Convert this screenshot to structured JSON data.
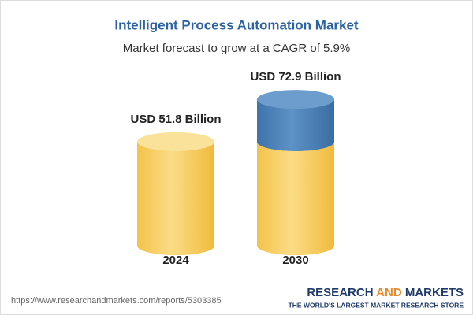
{
  "chart_data": {
    "type": "cylinder",
    "title": "Intelligent Process Automation Market",
    "subtitle": "Market forecast to grow at a CAGR of 5.9%",
    "categories": [
      "2024",
      "2030"
    ],
    "values": [
      51.8,
      72.9
    ],
    "value_labels": [
      "USD 51.8 Billion",
      "USD 72.9 Billion"
    ],
    "color": "#f4c44e",
    "growth_color": "#4d83b8"
  },
  "footer": {
    "url": "https://www.researchandmarkets.com/reports/5303385",
    "brand": [
      "RESEARCH",
      "AND",
      "MARKETS"
    ],
    "tagline": "THE WORLD'S LARGEST MARKET RESEARCH STORE"
  }
}
